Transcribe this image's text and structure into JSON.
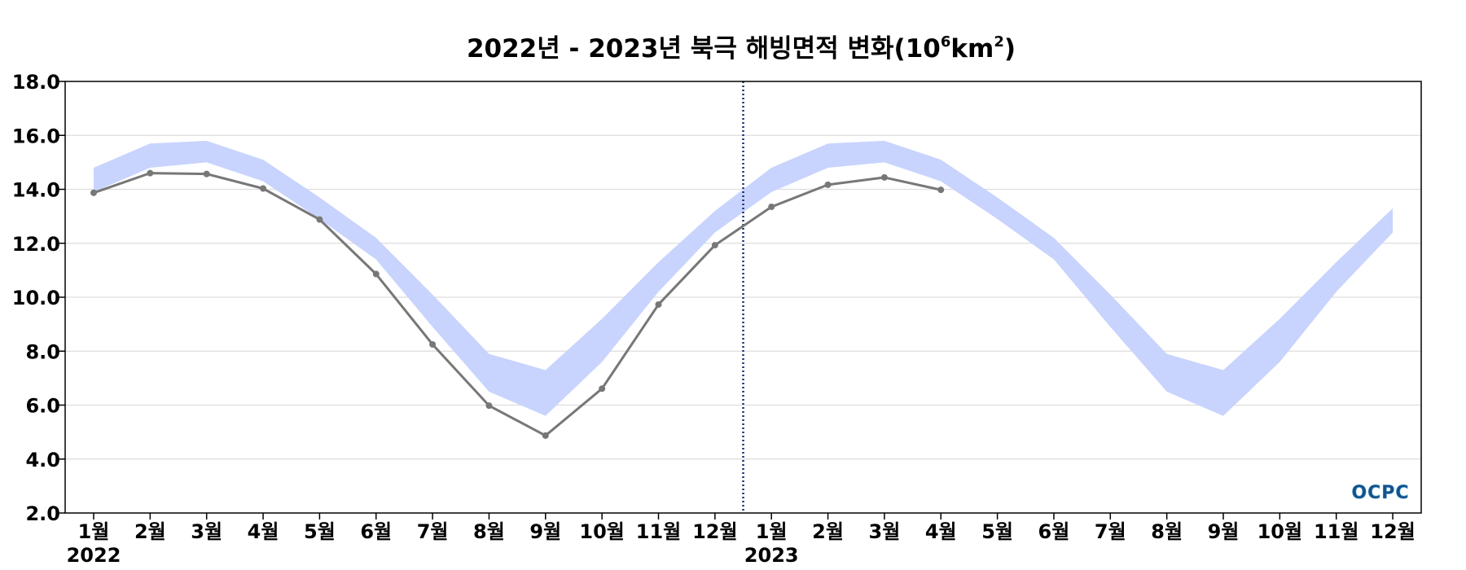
{
  "chart_data": {
    "type": "line",
    "title_main": "2022년 - 2023년 북극 해빙면적 변화(10",
    "title_sup": "6",
    "title_unit": "km",
    "title_sup2": "2",
    "title_close": ")",
    "ylim": [
      2.0,
      18.0
    ],
    "y_ticks": [
      "2.0",
      "4.0",
      "6.0",
      "8.0",
      "10.0",
      "12.0",
      "14.0",
      "16.0",
      "18.0"
    ],
    "x_tick_labels": [
      "1월",
      "2월",
      "3월",
      "4월",
      "5월",
      "6월",
      "7월",
      "8월",
      "9월",
      "10월",
      "11월",
      "12월",
      "1월",
      "2월",
      "3월",
      "4월",
      "5월",
      "6월",
      "7월",
      "8월",
      "9월",
      "10월",
      "11월",
      "12월"
    ],
    "year_labels": [
      "2022",
      "2023"
    ],
    "grid": "horizontal",
    "divider_after_month": 12,
    "band": {
      "upper": [
        14.8,
        15.7,
        15.8,
        15.1,
        13.7,
        12.2,
        10.1,
        7.9,
        7.3,
        9.2,
        11.3,
        13.2,
        14.8,
        15.7,
        15.8,
        15.1,
        13.7,
        12.2,
        10.1,
        7.9,
        7.3,
        9.2,
        11.3,
        13.3
      ],
      "lower": [
        13.9,
        14.8,
        15.0,
        14.3,
        12.9,
        11.4,
        8.9,
        6.5,
        5.6,
        7.6,
        10.2,
        12.4,
        13.9,
        14.8,
        15.0,
        14.3,
        12.9,
        11.4,
        8.9,
        6.5,
        5.6,
        7.6,
        10.2,
        12.4
      ]
    },
    "series": [
      {
        "values": [
          13.87,
          14.6,
          14.57,
          14.03,
          12.88,
          10.86,
          8.25,
          5.98,
          4.87,
          6.61,
          9.73,
          11.93,
          13.35,
          14.17,
          14.44,
          13.98
        ]
      }
    ],
    "colors": {
      "band": "#c8d4fd",
      "line": "#777777",
      "grid": "#dddddd",
      "divider": "#1a2f6e"
    }
  },
  "logo": {
    "text": "OCPC",
    "color_top": "#3aa0c8",
    "color_bottom": "#1a4f8a"
  }
}
